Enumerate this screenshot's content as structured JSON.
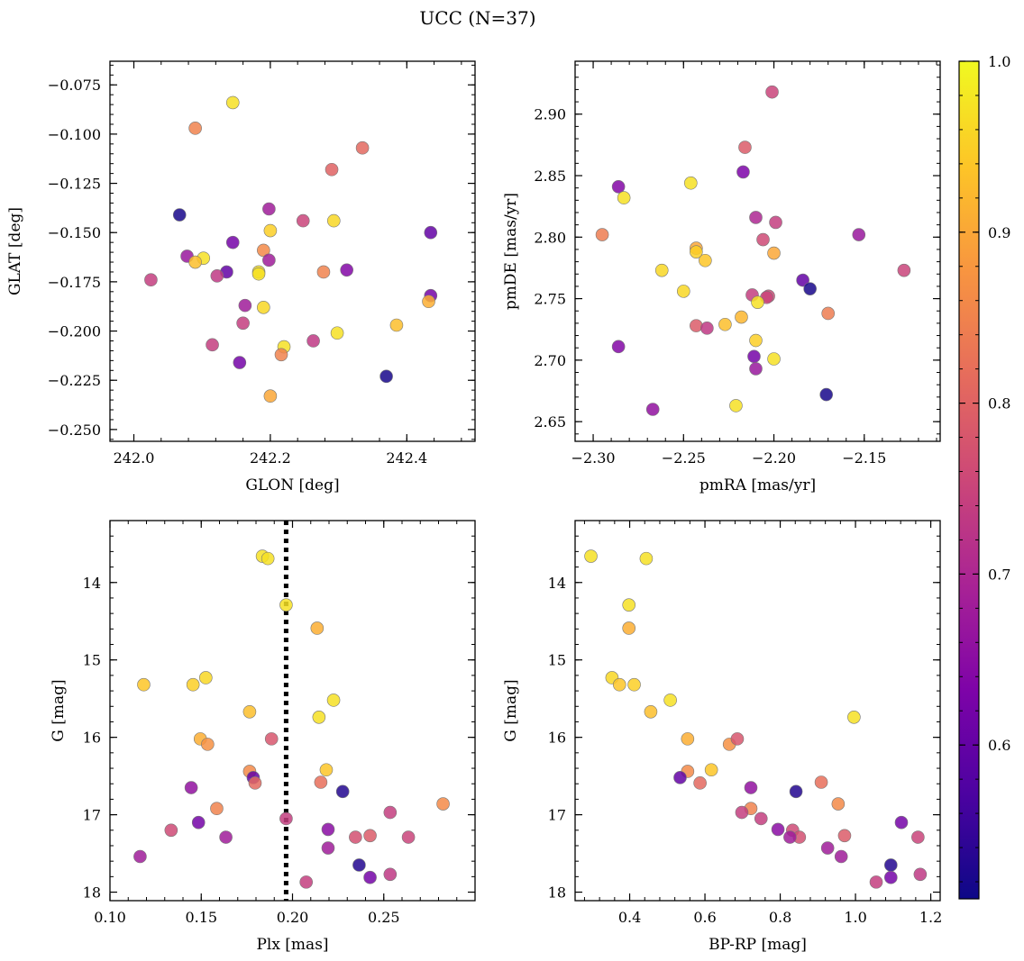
{
  "figure": {
    "title": "UCC (N=37)",
    "colormap": "plasma",
    "point_edge_color": "#777777",
    "point_opacity": 0.85,
    "colorbar": {
      "min": 0.51,
      "max": 1.0,
      "tick_labels": [
        "0.6",
        "0.7",
        "0.8",
        "0.9",
        "1.0"
      ]
    },
    "vline_color": "#000000"
  },
  "chart_data": [
    {
      "type": "scatter",
      "xlabel": "GLON [deg]",
      "ylabel": "GLAT [deg]",
      "xlim": [
        241.965,
        242.5
      ],
      "ylim": [
        -0.256,
        -0.063
      ],
      "xticks": [
        242.0,
        242.2,
        242.4
      ],
      "xtick_labels": [
        "242.0",
        "242.2",
        "242.4"
      ],
      "yticks": [
        -0.075,
        -0.1,
        -0.125,
        -0.15,
        -0.175,
        -0.2,
        -0.225,
        -0.25
      ],
      "ytick_labels": [
        "−0.075",
        "−0.100",
        "−0.125",
        "−0.150",
        "−0.175",
        "−0.200",
        "−0.225",
        "−0.250"
      ],
      "points": [
        {
          "x": 242.145,
          "y": -0.084,
          "c": 0.97
        },
        {
          "x": 242.09,
          "y": -0.097,
          "c": 0.85
        },
        {
          "x": 242.335,
          "y": -0.107,
          "c": 0.81
        },
        {
          "x": 242.29,
          "y": -0.118,
          "c": 0.8
        },
        {
          "x": 242.067,
          "y": -0.141,
          "c": 0.52
        },
        {
          "x": 242.198,
          "y": -0.138,
          "c": 0.68
        },
        {
          "x": 242.248,
          "y": -0.144,
          "c": 0.75
        },
        {
          "x": 242.293,
          "y": -0.144,
          "c": 0.96
        },
        {
          "x": 242.2,
          "y": -0.149,
          "c": 0.95
        },
        {
          "x": 242.435,
          "y": -0.15,
          "c": 0.6
        },
        {
          "x": 242.145,
          "y": -0.155,
          "c": 0.62
        },
        {
          "x": 242.19,
          "y": -0.159,
          "c": 0.86
        },
        {
          "x": 242.078,
          "y": -0.162,
          "c": 0.67
        },
        {
          "x": 242.102,
          "y": -0.163,
          "c": 0.97
        },
        {
          "x": 242.09,
          "y": -0.165,
          "c": 0.93
        },
        {
          "x": 242.198,
          "y": -0.164,
          "c": 0.68
        },
        {
          "x": 242.136,
          "y": -0.17,
          "c": 0.6
        },
        {
          "x": 242.183,
          "y": -0.17,
          "c": 0.97
        },
        {
          "x": 242.183,
          "y": -0.171,
          "c": 0.97
        },
        {
          "x": 242.278,
          "y": -0.17,
          "c": 0.85
        },
        {
          "x": 242.312,
          "y": -0.169,
          "c": 0.64
        },
        {
          "x": 242.025,
          "y": -0.174,
          "c": 0.74
        },
        {
          "x": 242.122,
          "y": -0.172,
          "c": 0.73
        },
        {
          "x": 242.163,
          "y": -0.187,
          "c": 0.68
        },
        {
          "x": 242.19,
          "y": -0.188,
          "c": 0.96
        },
        {
          "x": 242.435,
          "y": -0.182,
          "c": 0.62
        },
        {
          "x": 242.432,
          "y": -0.185,
          "c": 0.91
        },
        {
          "x": 242.16,
          "y": -0.196,
          "c": 0.74
        },
        {
          "x": 242.385,
          "y": -0.197,
          "c": 0.93
        },
        {
          "x": 242.298,
          "y": -0.201,
          "c": 0.97
        },
        {
          "x": 242.263,
          "y": -0.205,
          "c": 0.73
        },
        {
          "x": 242.115,
          "y": -0.207,
          "c": 0.74
        },
        {
          "x": 242.22,
          "y": -0.208,
          "c": 0.97
        },
        {
          "x": 242.216,
          "y": -0.212,
          "c": 0.85
        },
        {
          "x": 242.155,
          "y": -0.216,
          "c": 0.62
        },
        {
          "x": 242.37,
          "y": -0.223,
          "c": 0.52
        },
        {
          "x": 242.2,
          "y": -0.233,
          "c": 0.9
        }
      ]
    },
    {
      "type": "scatter",
      "xlabel": "pmRA [mas/yr]",
      "ylabel": "pmDE [mas/yr]",
      "xlim": [
        -2.31,
        -2.108
      ],
      "ylim": [
        2.634,
        2.943
      ],
      "xticks": [
        -2.3,
        -2.25,
        -2.2,
        -2.15
      ],
      "xtick_labels": [
        "−2.30",
        "−2.25",
        "−2.20",
        "−2.15"
      ],
      "yticks": [
        2.65,
        2.7,
        2.75,
        2.8,
        2.85,
        2.9
      ],
      "ytick_labels": [
        "2.65",
        "2.70",
        "2.75",
        "2.80",
        "2.85",
        "2.90"
      ],
      "points": [
        {
          "x": -2.201,
          "y": 2.918,
          "c": 0.75
        },
        {
          "x": -2.216,
          "y": 2.873,
          "c": 0.79
        },
        {
          "x": -2.217,
          "y": 2.853,
          "c": 0.63
        },
        {
          "x": -2.246,
          "y": 2.844,
          "c": 0.97
        },
        {
          "x": -2.286,
          "y": 2.841,
          "c": 0.64
        },
        {
          "x": -2.283,
          "y": 2.832,
          "c": 0.97
        },
        {
          "x": -2.21,
          "y": 2.816,
          "c": 0.7
        },
        {
          "x": -2.199,
          "y": 2.812,
          "c": 0.74
        },
        {
          "x": -2.295,
          "y": 2.802,
          "c": 0.84
        },
        {
          "x": -2.153,
          "y": 2.802,
          "c": 0.67
        },
        {
          "x": -2.206,
          "y": 2.798,
          "c": 0.76
        },
        {
          "x": -2.243,
          "y": 2.791,
          "c": 0.9
        },
        {
          "x": -2.243,
          "y": 2.788,
          "c": 0.95
        },
        {
          "x": -2.2,
          "y": 2.787,
          "c": 0.9
        },
        {
          "x": -2.238,
          "y": 2.781,
          "c": 0.94
        },
        {
          "x": -2.262,
          "y": 2.773,
          "c": 0.96
        },
        {
          "x": -2.128,
          "y": 2.773,
          "c": 0.75
        },
        {
          "x": -2.184,
          "y": 2.765,
          "c": 0.6
        },
        {
          "x": -2.18,
          "y": 2.758,
          "c": 0.52
        },
        {
          "x": -2.25,
          "y": 2.756,
          "c": 0.96
        },
        {
          "x": -2.212,
          "y": 2.753,
          "c": 0.74
        },
        {
          "x": -2.203,
          "y": 2.752,
          "c": 0.76
        },
        {
          "x": -2.204,
          "y": 2.751,
          "c": 0.75
        },
        {
          "x": -2.17,
          "y": 2.738,
          "c": 0.84
        },
        {
          "x": -2.209,
          "y": 2.747,
          "c": 0.97
        },
        {
          "x": -2.218,
          "y": 2.735,
          "c": 0.92
        },
        {
          "x": -2.227,
          "y": 2.729,
          "c": 0.93
        },
        {
          "x": -2.243,
          "y": 2.728,
          "c": 0.79
        },
        {
          "x": -2.237,
          "y": 2.726,
          "c": 0.73
        },
        {
          "x": -2.21,
          "y": 2.716,
          "c": 0.95
        },
        {
          "x": -2.286,
          "y": 2.711,
          "c": 0.64
        },
        {
          "x": -2.211,
          "y": 2.703,
          "c": 0.62
        },
        {
          "x": -2.2,
          "y": 2.701,
          "c": 0.97
        },
        {
          "x": -2.21,
          "y": 2.693,
          "c": 0.67
        },
        {
          "x": -2.171,
          "y": 2.672,
          "c": 0.52
        },
        {
          "x": -2.221,
          "y": 2.663,
          "c": 0.97
        },
        {
          "x": -2.267,
          "y": 2.66,
          "c": 0.66
        }
      ]
    },
    {
      "type": "scatter",
      "xlabel": "Plx [mas]",
      "ylabel": "G [mag]",
      "xlim": [
        0.1,
        0.3
      ],
      "ylim": [
        18.11,
        13.2
      ],
      "y_inverted": true,
      "xticks": [
        0.1,
        0.15,
        0.2,
        0.25
      ],
      "xtick_labels": [
        "0.10",
        "0.15",
        "0.20",
        "0.25"
      ],
      "yticks": [
        14,
        15,
        16,
        17,
        18
      ],
      "ytick_labels": [
        "14",
        "15",
        "16",
        "17",
        "18"
      ],
      "vline": {
        "x": 0.1965
      },
      "points": [
        {
          "x": 0.1835,
          "y": 13.66,
          "c": 0.97
        },
        {
          "x": 0.1865,
          "y": 13.69,
          "c": 0.97
        },
        {
          "x": 0.1965,
          "y": 14.29,
          "c": 0.97
        },
        {
          "x": 0.2135,
          "y": 14.59,
          "c": 0.91
        },
        {
          "x": 0.1525,
          "y": 15.23,
          "c": 0.96
        },
        {
          "x": 0.1185,
          "y": 15.32,
          "c": 0.94
        },
        {
          "x": 0.1455,
          "y": 15.32,
          "c": 0.95
        },
        {
          "x": 0.2225,
          "y": 15.52,
          "c": 0.97
        },
        {
          "x": 0.1765,
          "y": 15.67,
          "c": 0.93
        },
        {
          "x": 0.2145,
          "y": 15.74,
          "c": 0.97
        },
        {
          "x": 0.1495,
          "y": 16.02,
          "c": 0.91
        },
        {
          "x": 0.1535,
          "y": 16.09,
          "c": 0.87
        },
        {
          "x": 0.1885,
          "y": 16.02,
          "c": 0.78
        },
        {
          "x": 0.2185,
          "y": 16.42,
          "c": 0.94
        },
        {
          "x": 0.1765,
          "y": 16.44,
          "c": 0.86
        },
        {
          "x": 0.1785,
          "y": 16.52,
          "c": 0.6
        },
        {
          "x": 0.1795,
          "y": 16.59,
          "c": 0.81
        },
        {
          "x": 0.2155,
          "y": 16.58,
          "c": 0.82
        },
        {
          "x": 0.1445,
          "y": 16.65,
          "c": 0.66
        },
        {
          "x": 0.2275,
          "y": 16.7,
          "c": 0.53
        },
        {
          "x": 0.2825,
          "y": 16.86,
          "c": 0.86
        },
        {
          "x": 0.1585,
          "y": 16.92,
          "c": 0.85
        },
        {
          "x": 0.2535,
          "y": 16.97,
          "c": 0.74
        },
        {
          "x": 0.1965,
          "y": 17.05,
          "c": 0.74
        },
        {
          "x": 0.1485,
          "y": 17.1,
          "c": 0.62
        },
        {
          "x": 0.1335,
          "y": 17.2,
          "c": 0.76
        },
        {
          "x": 0.2195,
          "y": 17.19,
          "c": 0.65
        },
        {
          "x": 0.2345,
          "y": 17.29,
          "c": 0.77
        },
        {
          "x": 0.2425,
          "y": 17.27,
          "c": 0.79
        },
        {
          "x": 0.2635,
          "y": 17.29,
          "c": 0.75
        },
        {
          "x": 0.1635,
          "y": 17.29,
          "c": 0.68
        },
        {
          "x": 0.2195,
          "y": 17.43,
          "c": 0.68
        },
        {
          "x": 0.1165,
          "y": 17.54,
          "c": 0.68
        },
        {
          "x": 0.2365,
          "y": 17.65,
          "c": 0.53
        },
        {
          "x": 0.2535,
          "y": 17.77,
          "c": 0.73
        },
        {
          "x": 0.2425,
          "y": 17.81,
          "c": 0.62
        },
        {
          "x": 0.2075,
          "y": 17.87,
          "c": 0.74
        }
      ]
    },
    {
      "type": "scatter",
      "xlabel": "BP-RP [mag]",
      "ylabel": "G [mag]",
      "xlim": [
        0.255,
        1.225
      ],
      "ylim": [
        18.11,
        13.2
      ],
      "y_inverted": true,
      "xticks": [
        0.4,
        0.6,
        0.8,
        1.0,
        1.2
      ],
      "xtick_labels": [
        "0.4",
        "0.6",
        "0.8",
        "1.0",
        "1.2"
      ],
      "yticks": [
        14,
        15,
        16,
        17,
        18
      ],
      "ytick_labels": [
        "14",
        "15",
        "16",
        "17",
        "18"
      ],
      "points": [
        {
          "x": 0.297,
          "y": 13.66,
          "c": 0.97
        },
        {
          "x": 0.444,
          "y": 13.69,
          "c": 0.97
        },
        {
          "x": 0.398,
          "y": 14.29,
          "c": 0.97
        },
        {
          "x": 0.398,
          "y": 14.59,
          "c": 0.91
        },
        {
          "x": 0.353,
          "y": 15.23,
          "c": 0.96
        },
        {
          "x": 0.373,
          "y": 15.32,
          "c": 0.94
        },
        {
          "x": 0.412,
          "y": 15.32,
          "c": 0.95
        },
        {
          "x": 0.508,
          "y": 15.52,
          "c": 0.97
        },
        {
          "x": 0.456,
          "y": 15.67,
          "c": 0.93
        },
        {
          "x": 0.996,
          "y": 15.74,
          "c": 0.97
        },
        {
          "x": 0.554,
          "y": 16.02,
          "c": 0.91
        },
        {
          "x": 0.665,
          "y": 16.09,
          "c": 0.87
        },
        {
          "x": 0.686,
          "y": 16.02,
          "c": 0.78
        },
        {
          "x": 0.617,
          "y": 16.42,
          "c": 0.94
        },
        {
          "x": 0.554,
          "y": 16.44,
          "c": 0.86
        },
        {
          "x": 0.534,
          "y": 16.52,
          "c": 0.6
        },
        {
          "x": 0.587,
          "y": 16.59,
          "c": 0.81
        },
        {
          "x": 0.909,
          "y": 16.58,
          "c": 0.82
        },
        {
          "x": 0.722,
          "y": 16.65,
          "c": 0.66
        },
        {
          "x": 0.842,
          "y": 16.7,
          "c": 0.53
        },
        {
          "x": 0.954,
          "y": 16.86,
          "c": 0.86
        },
        {
          "x": 0.722,
          "y": 16.92,
          "c": 0.85
        },
        {
          "x": 0.698,
          "y": 16.97,
          "c": 0.74
        },
        {
          "x": 0.749,
          "y": 17.05,
          "c": 0.74
        },
        {
          "x": 1.122,
          "y": 17.1,
          "c": 0.62
        },
        {
          "x": 0.833,
          "y": 17.2,
          "c": 0.76
        },
        {
          "x": 0.794,
          "y": 17.19,
          "c": 0.65
        },
        {
          "x": 0.851,
          "y": 17.29,
          "c": 0.77
        },
        {
          "x": 0.971,
          "y": 17.27,
          "c": 0.79
        },
        {
          "x": 1.166,
          "y": 17.29,
          "c": 0.75
        },
        {
          "x": 0.826,
          "y": 17.29,
          "c": 0.68
        },
        {
          "x": 0.926,
          "y": 17.43,
          "c": 0.68
        },
        {
          "x": 0.962,
          "y": 17.54,
          "c": 0.68
        },
        {
          "x": 1.094,
          "y": 17.65,
          "c": 0.53
        },
        {
          "x": 1.172,
          "y": 17.77,
          "c": 0.73
        },
        {
          "x": 1.094,
          "y": 17.81,
          "c": 0.62
        },
        {
          "x": 1.055,
          "y": 17.87,
          "c": 0.74
        }
      ]
    }
  ]
}
